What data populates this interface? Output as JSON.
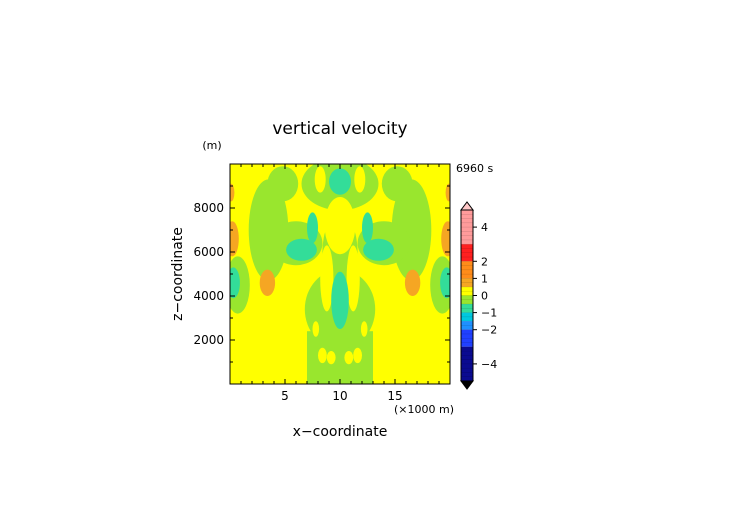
{
  "chart_data": {
    "type": "heatmap",
    "title": "vertical velocity",
    "xlabel": "x−coordinate",
    "ylabel": "z−coordinate",
    "x_unit_label": "(×1000 m)",
    "y_unit_label": "(m)",
    "time_label": "6960 s",
    "xlim": [
      0,
      20
    ],
    "ylim": [
      0,
      10000
    ],
    "x_ticks": [
      5,
      10,
      15
    ],
    "y_ticks": [
      2000,
      4000,
      6000,
      8000
    ],
    "colorbar": {
      "ticks": [
        4,
        2,
        1,
        0,
        -1,
        -2,
        -4
      ],
      "tick_labels": [
        "4",
        "2",
        "1",
        "0",
        "−1",
        "−2",
        "−4"
      ],
      "levels": [
        {
          "lo": 3.0,
          "hi": 5.0,
          "color": "#ff9b9b"
        },
        {
          "lo": 2.0,
          "hi": 3.0,
          "color": "#ff2020"
        },
        {
          "lo": 1.0,
          "hi": 2.0,
          "color": "#ff8c1a"
        },
        {
          "lo": 0.5,
          "hi": 1.0,
          "color": "#f5a623"
        },
        {
          "lo": 0.0,
          "hi": 0.5,
          "color": "#ffff00"
        },
        {
          "lo": -0.5,
          "hi": 0.0,
          "color": "#99e62e"
        },
        {
          "lo": -1.0,
          "hi": -0.5,
          "color": "#33dd99"
        },
        {
          "lo": -1.5,
          "hi": -1.0,
          "color": "#00c8e0"
        },
        {
          "lo": -2.0,
          "hi": -1.5,
          "color": "#1e90ff"
        },
        {
          "lo": -3.0,
          "hi": -2.0,
          "color": "#2040ff"
        },
        {
          "lo": -5.0,
          "hi": -3.0,
          "color": "#0a0a90"
        }
      ],
      "over_color": "#ffc8c8",
      "under_color": "#000000"
    },
    "field": {
      "background": "#ffff00",
      "regions": [
        {
          "level": -0.5,
          "shape": "rect",
          "x": [
            7,
            13
          ],
          "z": [
            0,
            2400
          ]
        },
        {
          "level": -0.5,
          "shape": "ellipse",
          "cx": 10,
          "cz": 3400,
          "rx": 3.2,
          "rz": 1800
        },
        {
          "level": -0.5,
          "shape": "ellipse",
          "cx": 10,
          "cz": 6000,
          "rx": 1.6,
          "rz": 1700
        },
        {
          "level": -0.5,
          "shape": "ellipse",
          "cx": 10,
          "cz": 9100,
          "rx": 3.5,
          "rz": 1200
        },
        {
          "level": -0.5,
          "shape": "ellipse",
          "cx": 3.5,
          "cz": 7000,
          "rx": 1.8,
          "rz": 2300
        },
        {
          "level": -0.5,
          "shape": "ellipse",
          "cx": 16.5,
          "cz": 7000,
          "rx": 1.8,
          "rz": 2300
        },
        {
          "level": -0.5,
          "shape": "ellipse",
          "cx": 6.0,
          "cz": 6400,
          "rx": 2.4,
          "rz": 1000
        },
        {
          "level": -0.5,
          "shape": "ellipse",
          "cx": 14.0,
          "cz": 6400,
          "rx": 2.4,
          "rz": 1000
        },
        {
          "level": -0.5,
          "shape": "ellipse",
          "cx": 0.7,
          "cz": 4500,
          "rx": 1.1,
          "rz": 1300
        },
        {
          "level": -0.5,
          "shape": "ellipse",
          "cx": 19.3,
          "cz": 4500,
          "rx": 1.1,
          "rz": 1300
        },
        {
          "level": -0.5,
          "shape": "ellipse",
          "cx": 4.8,
          "cz": 9100,
          "rx": 1.4,
          "rz": 800
        },
        {
          "level": -0.5,
          "shape": "ellipse",
          "cx": 15.2,
          "cz": 9100,
          "rx": 1.4,
          "rz": 800
        },
        {
          "level": 0.0,
          "shape": "ellipse",
          "cx": 10,
          "cz": 7200,
          "rx": 1.4,
          "rz": 1300
        },
        {
          "level": 0.0,
          "shape": "ellipse",
          "cx": 8.8,
          "cz": 4800,
          "rx": 0.6,
          "rz": 1500
        },
        {
          "level": 0.0,
          "shape": "ellipse",
          "cx": 11.2,
          "cz": 4800,
          "rx": 0.6,
          "rz": 1500
        },
        {
          "level": 0.0,
          "shape": "ellipse",
          "cx": 8.2,
          "cz": 9300,
          "rx": 0.5,
          "rz": 600
        },
        {
          "level": 0.0,
          "shape": "ellipse",
          "cx": 11.8,
          "cz": 9300,
          "rx": 0.5,
          "rz": 600
        },
        {
          "level": 0.0,
          "shape": "ellipse",
          "cx": 8.4,
          "cz": 1300,
          "rx": 0.4,
          "rz": 350
        },
        {
          "level": 0.0,
          "shape": "ellipse",
          "cx": 11.6,
          "cz": 1300,
          "rx": 0.4,
          "rz": 350
        },
        {
          "level": 0.0,
          "shape": "ellipse",
          "cx": 9.2,
          "cz": 1200,
          "rx": 0.4,
          "rz": 300
        },
        {
          "level": 0.0,
          "shape": "ellipse",
          "cx": 10.8,
          "cz": 1200,
          "rx": 0.4,
          "rz": 300
        },
        {
          "level": 0.0,
          "shape": "ellipse",
          "cx": 7.8,
          "cz": 2500,
          "rx": 0.3,
          "rz": 350
        },
        {
          "level": 0.0,
          "shape": "ellipse",
          "cx": 12.2,
          "cz": 2500,
          "rx": 0.3,
          "rz": 350
        },
        {
          "level": -1.0,
          "shape": "ellipse",
          "cx": 10,
          "cz": 3800,
          "rx": 0.8,
          "rz": 1300
        },
        {
          "level": -1.0,
          "shape": "ellipse",
          "cx": 10,
          "cz": 9200,
          "rx": 1.0,
          "rz": 600
        },
        {
          "level": -1.0,
          "shape": "ellipse",
          "cx": 6.5,
          "cz": 6100,
          "rx": 1.4,
          "rz": 500
        },
        {
          "level": -1.0,
          "shape": "ellipse",
          "cx": 13.5,
          "cz": 6100,
          "rx": 1.4,
          "rz": 500
        },
        {
          "level": -1.0,
          "shape": "ellipse",
          "cx": 7.5,
          "cz": 7100,
          "rx": 0.5,
          "rz": 700
        },
        {
          "level": -1.0,
          "shape": "ellipse",
          "cx": 12.5,
          "cz": 7100,
          "rx": 0.5,
          "rz": 700
        },
        {
          "level": -1.0,
          "shape": "ellipse",
          "cx": 0.3,
          "cz": 4600,
          "rx": 0.6,
          "rz": 700
        },
        {
          "level": -1.0,
          "shape": "ellipse",
          "cx": 19.7,
          "cz": 4600,
          "rx": 0.6,
          "rz": 700
        },
        {
          "level": 0.5,
          "shape": "ellipse",
          "cx": 3.4,
          "cz": 4600,
          "rx": 0.7,
          "rz": 600
        },
        {
          "level": 0.5,
          "shape": "ellipse",
          "cx": 16.6,
          "cz": 4600,
          "rx": 0.7,
          "rz": 600
        },
        {
          "level": 0.5,
          "shape": "ellipse",
          "cx": 0.2,
          "cz": 6600,
          "rx": 0.6,
          "rz": 800
        },
        {
          "level": 0.5,
          "shape": "ellipse",
          "cx": 19.8,
          "cz": 6600,
          "rx": 0.6,
          "rz": 800
        },
        {
          "level": 0.5,
          "shape": "ellipse",
          "cx": 0.1,
          "cz": 8700,
          "rx": 0.3,
          "rz": 400
        },
        {
          "level": 0.5,
          "shape": "ellipse",
          "cx": 19.9,
          "cz": 8700,
          "rx": 0.3,
          "rz": 400
        }
      ]
    }
  }
}
